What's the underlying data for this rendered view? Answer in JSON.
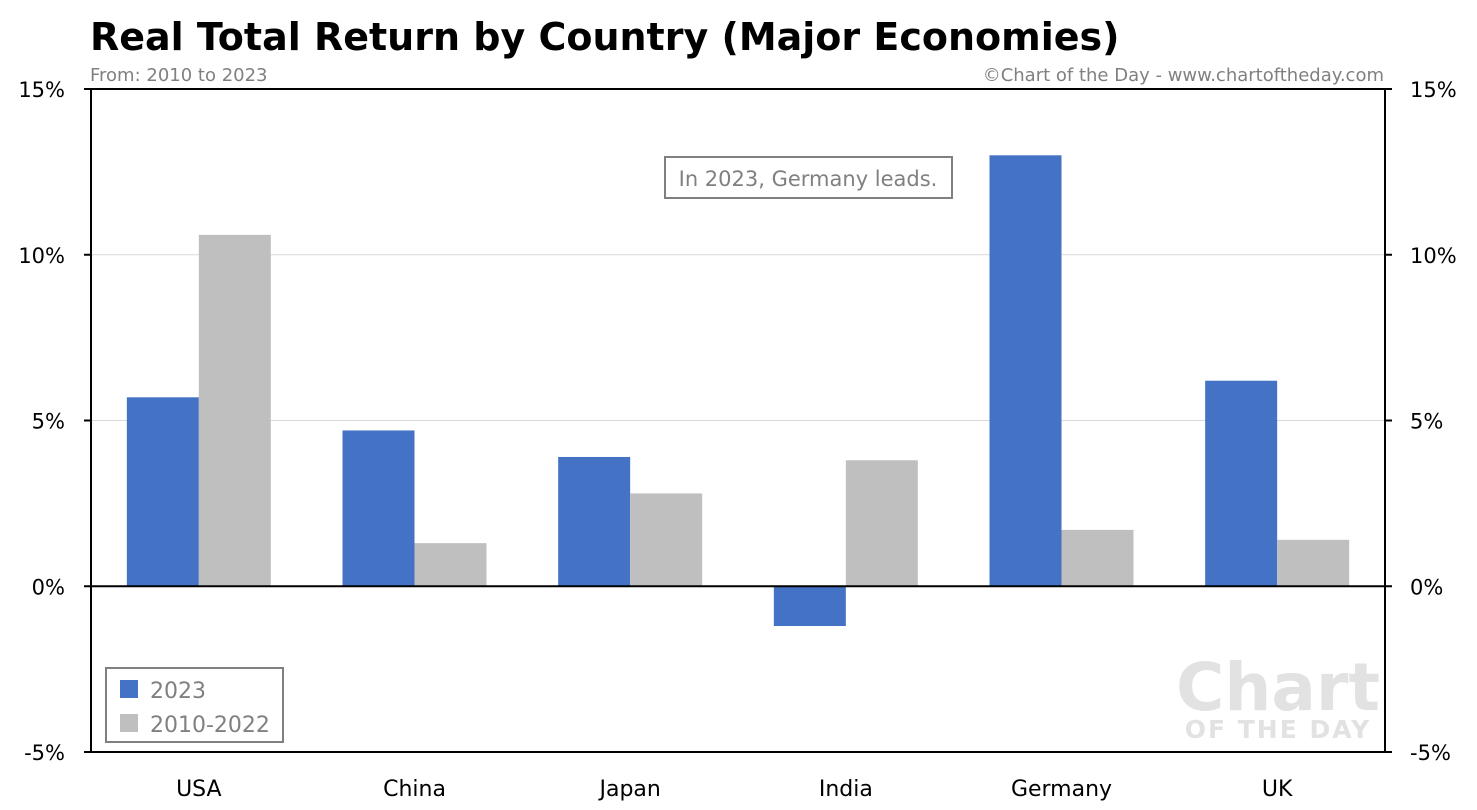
{
  "chart_data": {
    "type": "bar",
    "title": "Real Total Return by Country (Major Economies)",
    "subtitle": "From: 2010 to 2023",
    "source": "©Chart of the Day - www.chartoftheday.com",
    "annotation": "In 2023, Germany leads.",
    "categories": [
      "USA",
      "China",
      "Japan",
      "India",
      "Germany",
      "UK"
    ],
    "series": [
      {
        "name": "2023",
        "color": "#4472c4",
        "values": [
          5.7,
          4.7,
          3.9,
          -1.2,
          13.0,
          6.2
        ]
      },
      {
        "name": "2010-2022",
        "color": "#bfbfbf",
        "values": [
          10.6,
          1.3,
          2.8,
          3.8,
          1.7,
          1.4
        ]
      }
    ],
    "ylim": [
      -5,
      15
    ],
    "yticks": [
      15,
      10,
      5,
      0,
      -5
    ],
    "ytick_labels": [
      "15%",
      "10%",
      "5%",
      "0%",
      "-5%"
    ],
    "y_axis_right": true,
    "grid": true,
    "legend_position": "bottom-left",
    "watermark": {
      "line1": "Chart",
      "line2": "OF THE DAY"
    }
  }
}
